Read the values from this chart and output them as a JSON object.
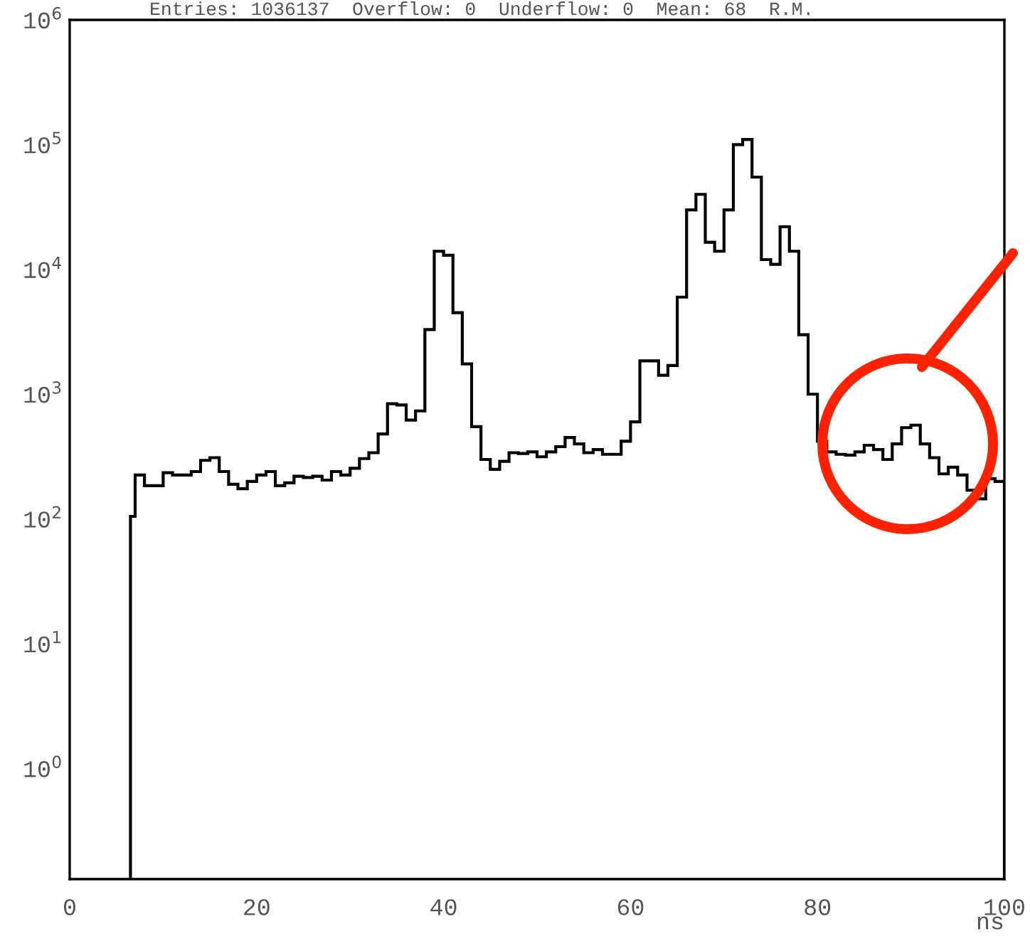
{
  "chart_data": {
    "type": "histogram",
    "xlabel": "ns",
    "annotations": [
      "Entries: 1036137  Overflow: 0  Underflow: 0  Mean: 68  R.M."
    ],
    "bins": [
      6.5,
      7,
      8,
      9,
      10,
      11,
      12,
      13,
      14,
      15,
      16,
      17,
      18,
      19,
      20,
      21,
      22,
      23,
      24,
      25,
      26,
      27,
      28,
      29,
      30,
      31,
      32,
      33,
      34,
      35,
      36,
      37,
      38,
      39,
      40,
      41,
      42,
      43,
      44,
      45,
      46,
      47,
      48,
      49,
      50,
      51,
      52,
      53,
      54,
      55,
      56,
      57,
      58,
      59,
      60,
      61,
      62,
      63,
      64,
      65,
      66,
      67,
      68,
      69,
      70,
      71,
      72,
      73,
      74,
      75,
      76,
      77,
      78,
      79,
      80,
      81,
      82,
      83,
      84,
      85,
      86,
      87,
      88,
      89,
      90,
      91,
      92,
      93,
      94,
      95,
      96,
      97,
      98,
      99,
      100
    ],
    "values": [
      105,
      225,
      185,
      185,
      235,
      225,
      225,
      240,
      295,
      310,
      240,
      190,
      175,
      200,
      225,
      240,
      185,
      195,
      220,
      215,
      220,
      205,
      240,
      225,
      255,
      305,
      340,
      480,
      840,
      820,
      620,
      735,
      3300,
      14000,
      13000,
      4500,
      1750,
      550,
      300,
      250,
      290,
      340,
      335,
      345,
      315,
      345,
      380,
      450,
      400,
      340,
      360,
      330,
      330,
      420,
      600,
      1850,
      1850,
      1420,
      1700,
      6000,
      30000,
      40000,
      16500,
      14000,
      30000,
      100000,
      110000,
      55000,
      12000,
      11000,
      22000,
      14000,
      3000,
      1000,
      420,
      345,
      330,
      325,
      345,
      390,
      360,
      300,
      400,
      540,
      565,
      400,
      310,
      230,
      260,
      225,
      170,
      145,
      210,
      200
    ],
    "color": "#000000",
    "log": true,
    "xlim": [
      0,
      100
    ],
    "xticks": [
      0,
      20,
      40,
      60,
      80,
      100
    ],
    "ylim": [
      0.13,
      1000000
    ],
    "yticks": [
      {
        "value": 1,
        "label": "10$^{0}$"
      },
      {
        "value": 10,
        "label": "10$^{1}$"
      },
      {
        "value": 100,
        "label": "10$^{2}$"
      },
      {
        "value": 1000,
        "label": "10$^{3}$"
      },
      {
        "value": 10000,
        "label": "10$^{4}$"
      },
      {
        "value": 100000,
        "label": "10$^{5}$"
      },
      {
        "value": 1000000,
        "label": "10$^{6}$"
      }
    ],
    "grid": false
  }
}
